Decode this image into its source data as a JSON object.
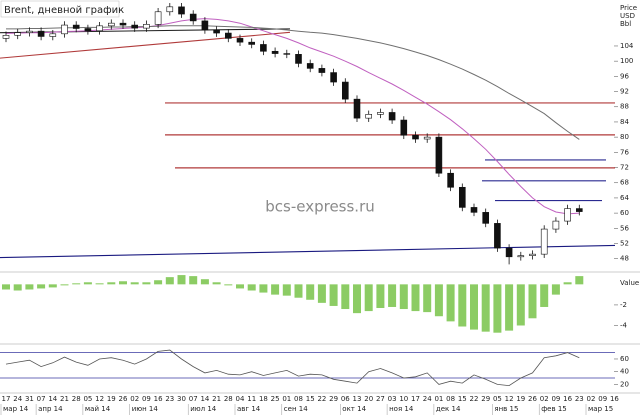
{
  "chart_data": [
    {
      "type": "candlestick",
      "title": "Brent, дневной график",
      "ylabel": [
        "Price",
        "USD",
        "Bbl"
      ],
      "watermark": "bcs-express.ru",
      "open": [
        106.0,
        106.8,
        107.5,
        107.9,
        106.5,
        107.2,
        109.5,
        108.6,
        108.0,
        109.3,
        110.0,
        109.5,
        108.7,
        109.7,
        113.0,
        114.3,
        112.4,
        110.6,
        108.2,
        107.4,
        106.0,
        105.0,
        104.4,
        102.6,
        102.0,
        101.8,
        99.4,
        98.1,
        97.0,
        94.5,
        90.0,
        85.0,
        86.0,
        86.5,
        84.5,
        80.5,
        79.5,
        80.0,
        70.5,
        66.8,
        61.5,
        60.2,
        57.3,
        50.8,
        48.5,
        48.8,
        49.2,
        55.8,
        57.9,
        61.2,
        null,
        null,
        null
      ],
      "high": [
        107.8,
        108.5,
        108.9,
        108.9,
        108.2,
        110.5,
        110.5,
        109.6,
        110.3,
        111.0,
        111.0,
        110.5,
        110.7,
        114.0,
        115.3,
        115.3,
        113.4,
        111.6,
        109.2,
        108.4,
        107.0,
        106.0,
        105.4,
        103.6,
        103.0,
        102.8,
        100.4,
        99.1,
        98.0,
        95.5,
        91.0,
        87.0,
        87.5,
        87.5,
        85.5,
        81.5,
        81.0,
        81.0,
        71.5,
        67.8,
        62.5,
        61.2,
        58.3,
        51.8,
        49.8,
        50.2,
        56.8,
        58.9,
        62.2,
        62.2,
        null,
        null,
        null
      ],
      "low": [
        105.0,
        105.8,
        106.5,
        105.5,
        105.5,
        106.2,
        107.6,
        107.0,
        107.0,
        108.3,
        108.5,
        107.7,
        107.7,
        108.7,
        112.0,
        111.4,
        109.6,
        107.2,
        106.4,
        105.0,
        104.0,
        103.4,
        101.6,
        101.0,
        100.8,
        98.4,
        97.1,
        96.0,
        93.5,
        89.0,
        84.0,
        84.0,
        85.0,
        83.5,
        79.5,
        78.5,
        78.5,
        69.5,
        65.8,
        60.5,
        59.2,
        56.3,
        49.8,
        46.5,
        47.5,
        47.8,
        48.2,
        54.8,
        56.9,
        59.4,
        null,
        null,
        null
      ],
      "close": [
        106.8,
        107.5,
        107.9,
        106.5,
        107.2,
        109.5,
        108.6,
        108.0,
        109.3,
        110.0,
        109.5,
        108.7,
        109.7,
        113.0,
        114.3,
        112.4,
        110.6,
        108.2,
        107.4,
        106.0,
        105.0,
        104.4,
        102.6,
        102.0,
        101.8,
        99.4,
        98.1,
        97.0,
        94.5,
        90.0,
        85.0,
        86.0,
        86.5,
        84.5,
        80.5,
        79.5,
        80.0,
        70.5,
        66.8,
        61.5,
        60.2,
        57.3,
        50.8,
        48.5,
        48.8,
        49.2,
        55.8,
        57.9,
        61.2,
        60.4,
        null,
        null,
        null
      ],
      "up_color": "#ffffff",
      "down_color": "#111111",
      "lines": [
        {
          "color": "#c060c0",
          "values": [
            107.3,
            107.4,
            107.5,
            107.5,
            107.6,
            107.8,
            107.9,
            108.0,
            108.2,
            108.4,
            108.6,
            108.8,
            109.0,
            109.4,
            110.0,
            110.6,
            111.0,
            111.2,
            111.0,
            110.6,
            110.0,
            109.0,
            108.0,
            107.0,
            106.0,
            104.8,
            103.5,
            102.4,
            101.3,
            100.0,
            98.6,
            97.0,
            95.5,
            94.0,
            92.3,
            90.5,
            88.7,
            86.7,
            84.6,
            82.2,
            79.6,
            76.8,
            73.6,
            70.2,
            67.0,
            64.0,
            61.7,
            60.3,
            59.8,
            60.0,
            null,
            null,
            null
          ]
        },
        {
          "color": "#707070",
          "values": [
            108.5,
            108.5,
            108.6,
            108.6,
            108.7,
            108.8,
            108.8,
            108.9,
            108.9,
            109.0,
            109.0,
            109.1,
            109.1,
            109.2,
            109.3,
            109.3,
            109.3,
            109.3,
            109.2,
            109.1,
            109.0,
            108.9,
            108.7,
            108.5,
            108.2,
            107.9,
            107.6,
            107.4,
            107.0,
            106.5,
            106.0,
            105.4,
            104.8,
            104.1,
            103.3,
            102.4,
            101.5,
            100.4,
            99.2,
            97.9,
            96.5,
            95.0,
            93.3,
            91.5,
            89.8,
            88.0,
            86.2,
            83.8,
            81.5,
            79.4,
            null,
            null,
            null
          ]
        }
      ],
      "levels": [
        {
          "value": 89.0,
          "color": "#b03a3a"
        },
        {
          "value": 80.6,
          "color": "#b03a3a"
        },
        {
          "value": 71.9,
          "color": "#b03a3a"
        },
        {
          "value": 74.0,
          "color": "#2a2a90"
        },
        {
          "value": 68.5,
          "color": "#2a2a90"
        },
        {
          "value": 63.3,
          "color": "#2a2a90"
        }
      ],
      "trendlines": [
        {
          "values": [
            100.8,
            107.6
          ],
          "color": "#b03a3a"
        },
        {
          "values": [
            107.5,
            108.5
          ],
          "color": "#222222"
        },
        {
          "values": [
            48.3,
            51.5
          ],
          "color": "#1a1a80"
        }
      ],
      "ylim": [
        44.5,
        116.1
      ],
      "yticks": [
        48,
        52,
        56,
        60,
        64,
        68,
        72,
        76,
        80,
        84,
        88,
        92,
        96,
        100,
        104
      ]
    },
    {
      "type": "bar",
      "label": "Value",
      "color": "#8ccc64",
      "values": [
        -0.5,
        -0.6,
        -0.5,
        -0.4,
        -0.3,
        -0.1,
        0.1,
        0.2,
        0.1,
        0.2,
        0.3,
        0.2,
        0.2,
        0.4,
        0.7,
        0.9,
        0.8,
        0.5,
        0.2,
        -0.1,
        -0.4,
        -0.6,
        -0.8,
        -1.0,
        -1.1,
        -1.3,
        -1.5,
        -1.8,
        -2.1,
        -2.4,
        -2.8,
        -2.6,
        -2.3,
        -2.2,
        -2.4,
        -2.6,
        -2.7,
        -3.1,
        -3.6,
        -4.1,
        -4.4,
        -4.6,
        -4.7,
        -4.5,
        -4.0,
        -3.3,
        -2.2,
        -1.0,
        0.2,
        0.8,
        null,
        null,
        null
      ],
      "ylim": [
        -5.8,
        1.2
      ],
      "yticks": [
        -2,
        -4
      ]
    },
    {
      "type": "line",
      "color": "#555555",
      "values": [
        52,
        55,
        58,
        48,
        54,
        63,
        55,
        50,
        60,
        62,
        58,
        52,
        60,
        72,
        74,
        60,
        48,
        38,
        42,
        36,
        35,
        40,
        34,
        38,
        42,
        33,
        36,
        35,
        28,
        25,
        22,
        40,
        45,
        38,
        30,
        32,
        38,
        20,
        25,
        22,
        35,
        28,
        20,
        18,
        30,
        38,
        62,
        65,
        70,
        62,
        null,
        null,
        null
      ],
      "levels": [
        {
          "value": 70,
          "color": "#3a3aa0"
        },
        {
          "value": 30,
          "color": "#3a3aa0"
        }
      ],
      "ylim": [
        8,
        82
      ],
      "yticks": [
        20,
        40,
        60
      ],
      "categories": [
        "17",
        "24",
        "31",
        "07",
        "14",
        "21",
        "28",
        "05",
        "12",
        "19",
        "26",
        "02",
        "09",
        "16",
        "23",
        "30",
        "07",
        "14",
        "21",
        "28",
        "04",
        "11",
        "18",
        "25",
        "01",
        "08",
        "15",
        "22",
        "29",
        "06",
        "13",
        "20",
        "27",
        "03",
        "10",
        "17",
        "24",
        "01",
        "08",
        "15",
        "22",
        "29",
        "05",
        "12",
        "19",
        "26",
        "02",
        "09",
        "16",
        "23",
        "02",
        "09",
        "16"
      ],
      "month_labels": [
        "мар 14",
        "апр 14",
        "май 14",
        "июн 14",
        "июл 14",
        "авг 14",
        "сен 14",
        "окт 14",
        "ноя 14",
        "дек 14",
        "янв 15",
        "фев 15",
        "мар 15"
      ]
    }
  ]
}
